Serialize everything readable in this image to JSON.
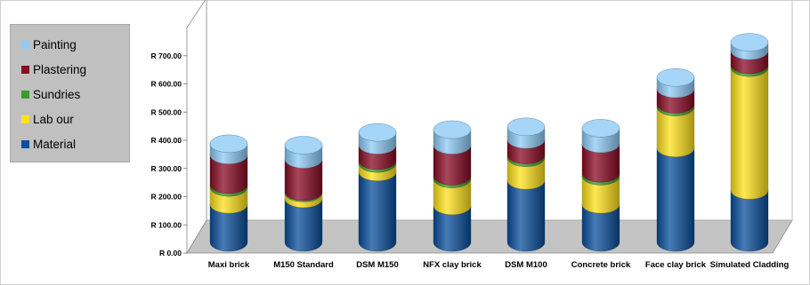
{
  "chart_data": {
    "type": "bar",
    "stacked": true,
    "style": "3d-cylinder",
    "title": "",
    "xlabel": "",
    "ylabel": "",
    "ylim": [
      0,
      800
    ],
    "y_ticks": [
      "R 0.00",
      "R 100.00",
      "R 200.00",
      "R 300.00",
      "R 400.00",
      "R 500.00",
      "R 600.00",
      "R 700.00"
    ],
    "y_tick_values": [
      0,
      100,
      200,
      300,
      400,
      500,
      600,
      700
    ],
    "grid": false,
    "legend_position": "left",
    "categories": [
      "Maxi brick",
      "M150 Standard",
      "DSM M150",
      "NFX clay brick",
      "DSM M100",
      "Concrete brick",
      "Face clay brick",
      "Simulated Cladding"
    ],
    "series": [
      {
        "name": "Material",
        "color": "#0a4f9c",
        "values": [
          135,
          155,
          250,
          130,
          220,
          135,
          335,
          185
        ]
      },
      {
        "name": "Lab our",
        "color": "#ffe21a",
        "values": [
          60,
          20,
          30,
          95,
          80,
          100,
          145,
          435
        ]
      },
      {
        "name": "Sundries",
        "color": "#3a9a2a",
        "values": [
          10,
          5,
          10,
          10,
          10,
          10,
          10,
          10
        ]
      },
      {
        "name": "Plastering",
        "color": "#8a0a24",
        "values": [
          105,
          115,
          55,
          110,
          55,
          105,
          55,
          50
        ]
      },
      {
        "name": "Painting",
        "color": "#8ecbf5",
        "values": [
          40,
          50,
          45,
          55,
          45,
          55,
          40,
          30
        ]
      }
    ]
  },
  "legend_order": [
    "Painting",
    "Plastering",
    "Sundries",
    "Lab our",
    "Material"
  ]
}
